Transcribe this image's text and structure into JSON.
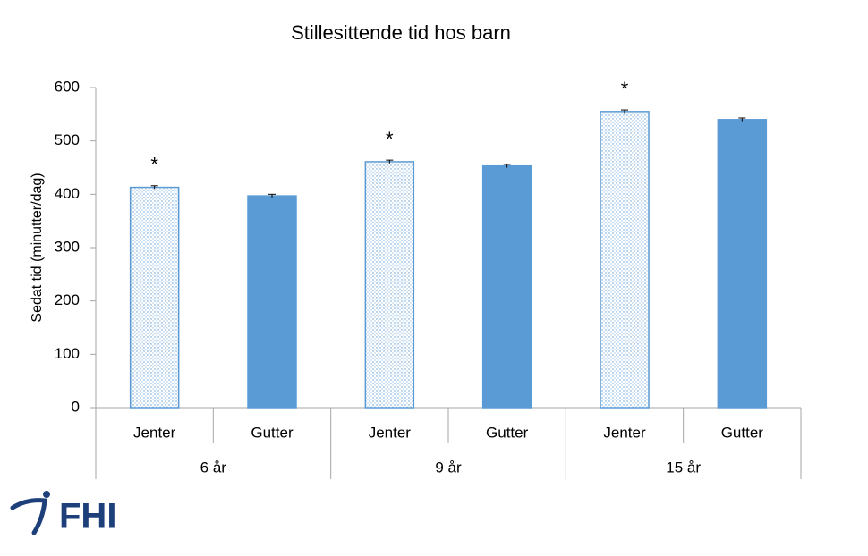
{
  "chart_data": {
    "type": "bar",
    "title": "Stillesittende tid hos barn",
    "y_label": "Sedat tid (minutter/dag)",
    "categories": [
      "6 år",
      "9 år",
      "15 år"
    ],
    "series": [
      {
        "name": "Jenter",
        "color": "#5b9bd5",
        "fill": "dotted",
        "values": [
          413,
          461,
          555
        ],
        "errors": [
          3,
          3,
          3
        ],
        "annotation": "*"
      },
      {
        "name": "Gutter",
        "color": "#5b9bd5",
        "fill": "solid",
        "values": [
          397,
          453,
          540
        ],
        "errors": [
          3,
          3,
          3
        ]
      }
    ],
    "ylim": [
      0,
      600
    ],
    "yticks": [
      0,
      100,
      200,
      300,
      400,
      500,
      600
    ],
    "grid": false
  },
  "logo": "FHI"
}
